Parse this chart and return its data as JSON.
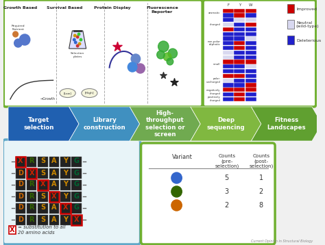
{
  "bg_color": "#f0f0f0",
  "title_journal": "Current Opinion in Structural Biology",
  "arrow_steps": [
    {
      "label": "Target\nselection",
      "color": "#2060b0"
    },
    {
      "label": "Library\nconstruction",
      "color": "#4090c0"
    },
    {
      "label": "High-\nthroughput\nselection or\nscreen",
      "color": "#70aa50"
    },
    {
      "label": "Deep\nsequencing",
      "color": "#80b840"
    },
    {
      "label": "Fitness\nLandscapes",
      "color": "#60a030"
    }
  ],
  "top_left_box_color": "#70b030",
  "top_left_title_sections": [
    "Growth Based",
    "Survival Based",
    "Protein Display",
    "Fluorescence\nReporter"
  ],
  "heatmap_colors_legend": [
    {
      "label": "Improved",
      "color": "#cc0000"
    },
    {
      "label": "Neutral\n(wild-type)",
      "color": "#d8d8f0"
    },
    {
      "label": "Deleterious",
      "color": "#2020cc"
    }
  ],
  "bottom_left_box_color": "#60a8c8",
  "sequence_rows": [
    [
      "X",
      "R",
      "S",
      "A",
      "Y",
      "G"
    ],
    [
      "D",
      "X",
      "S",
      "A",
      "Y",
      "G"
    ],
    [
      "D",
      "R",
      "X",
      "A",
      "Y",
      "G"
    ],
    [
      "D",
      "R",
      "S",
      "X",
      "Y",
      "G"
    ],
    [
      "D",
      "R",
      "S",
      "A",
      "X",
      "G"
    ],
    [
      "D",
      "R",
      "S",
      "A",
      "Y",
      "X"
    ]
  ],
  "seq_bg": "#1a1a1a",
  "bottom_right_box_color": "#70b030",
  "table_variant_colors": [
    "#3366cc",
    "#336600",
    "#cc6600"
  ],
  "table_pre": [
    5,
    3,
    2
  ],
  "table_post": [
    1,
    2,
    8
  ]
}
